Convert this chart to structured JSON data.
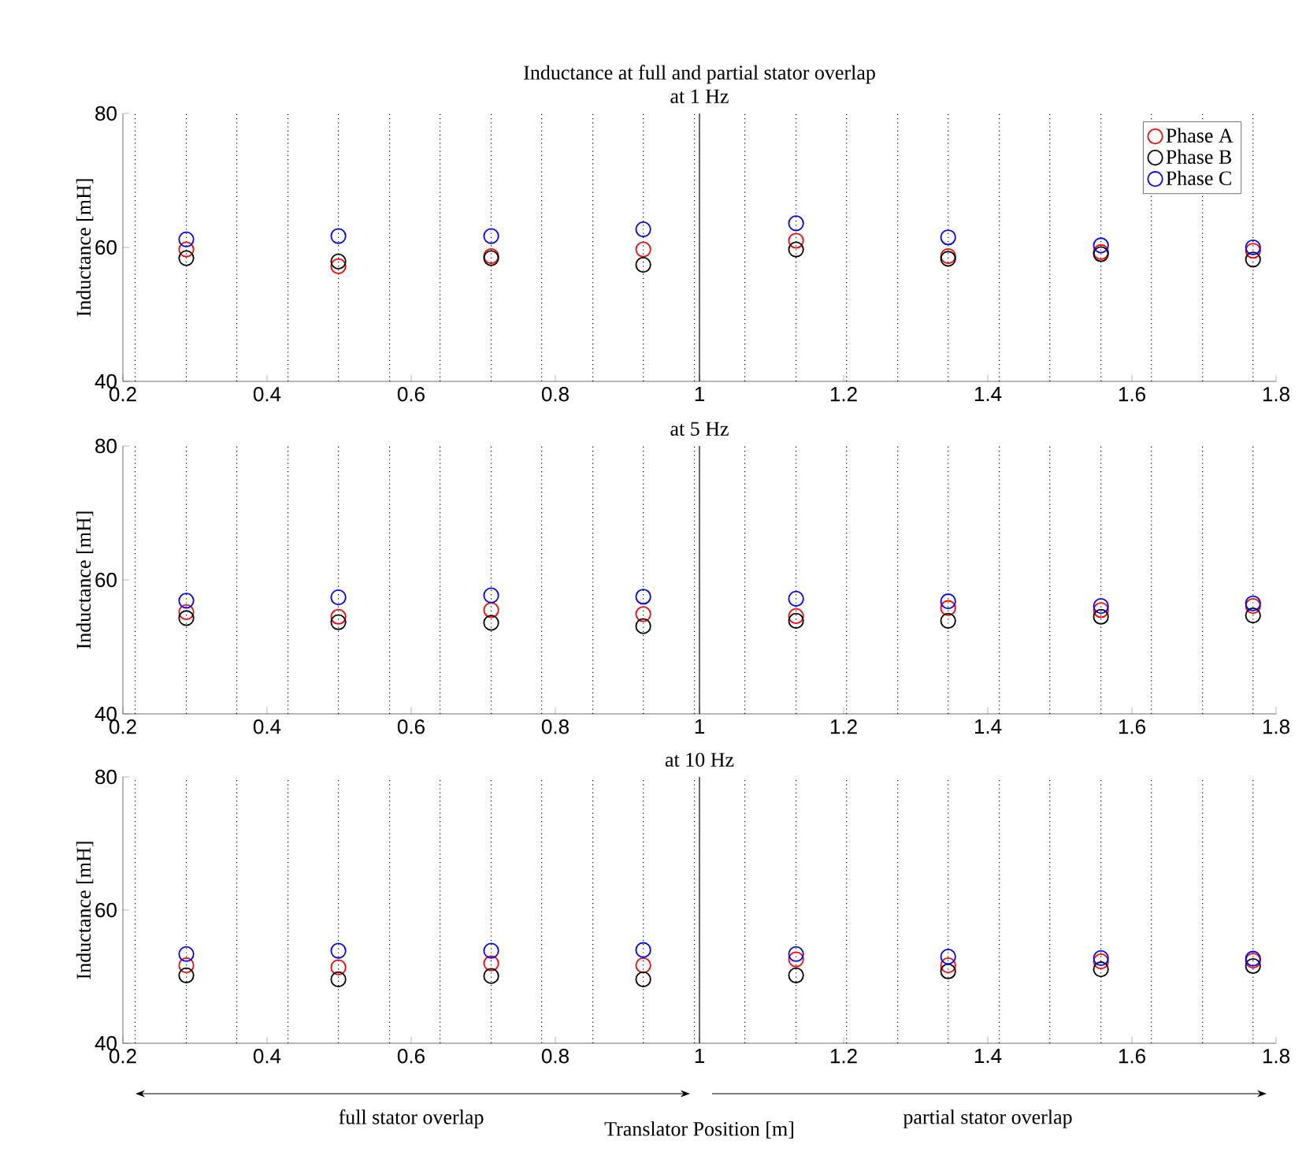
{
  "chart_data": [
    {
      "type": "scatter",
      "title": "Inductance at full and partial stator overlap",
      "subtitle": "at 1 Hz",
      "ylabel": "Inductance [mH]",
      "marker": "circle",
      "grid": false,
      "legend": "top right",
      "x": [
        0.288,
        0.499,
        0.711,
        0.922,
        1.134,
        1.345,
        1.557,
        1.768
      ],
      "xlim": [
        0.2,
        1.8
      ],
      "xticks": [
        0.2,
        0.4,
        0.6,
        0.8,
        1,
        1.2,
        1.4,
        1.6,
        1.8
      ],
      "ylim": [
        40,
        80
      ],
      "yticks": [
        40,
        60,
        80
      ],
      "series": [
        {
          "name": "Phase A",
          "color": "#ff0000",
          "values": [
            59.7,
            57.2,
            58.7,
            59.7,
            61.0,
            58.7,
            59.3,
            59.5
          ]
        },
        {
          "name": "Phase B",
          "color": "#000000",
          "values": [
            58.4,
            57.9,
            58.4,
            57.4,
            59.7,
            58.3,
            59.0,
            58.2
          ]
        },
        {
          "name": "Phase C",
          "color": "#0000ff",
          "values": [
            61.2,
            61.7,
            61.7,
            62.7,
            63.6,
            61.5,
            60.3,
            60.0
          ]
        }
      ],
      "ref_lines": [
        {
          "axis": "x",
          "value": 0.217,
          "line_style": "dotted",
          "color": "#000000"
        },
        {
          "axis": "x",
          "value": 0.288,
          "line_style": "dotted",
          "color": "#000000"
        },
        {
          "axis": "x",
          "value": 0.358,
          "line_style": "dotted",
          "color": "#000000"
        },
        {
          "axis": "x",
          "value": 0.429,
          "line_style": "dotted",
          "color": "#000000"
        },
        {
          "axis": "x",
          "value": 0.499,
          "line_style": "dotted",
          "color": "#000000"
        },
        {
          "axis": "x",
          "value": 0.57,
          "line_style": "dotted",
          "color": "#000000"
        },
        {
          "axis": "x",
          "value": 0.64,
          "line_style": "dotted",
          "color": "#000000"
        },
        {
          "axis": "x",
          "value": 0.711,
          "line_style": "dotted",
          "color": "#000000"
        },
        {
          "axis": "x",
          "value": 0.781,
          "line_style": "dotted",
          "color": "#000000"
        },
        {
          "axis": "x",
          "value": 0.852,
          "line_style": "dotted",
          "color": "#000000"
        },
        {
          "axis": "x",
          "value": 0.922,
          "line_style": "dotted",
          "color": "#000000"
        },
        {
          "axis": "x",
          "value": 0.993,
          "line_style": "dotted",
          "color": "#000000"
        },
        {
          "axis": "x",
          "value": 1,
          "line_style": "solid",
          "color": "#000000"
        },
        {
          "axis": "x",
          "value": 1.063,
          "line_style": "dotted",
          "color": "#000000"
        },
        {
          "axis": "x",
          "value": 1.134,
          "line_style": "dotted",
          "color": "#000000"
        },
        {
          "axis": "x",
          "value": 1.204,
          "line_style": "dotted",
          "color": "#000000"
        },
        {
          "axis": "x",
          "value": 1.275,
          "line_style": "dotted",
          "color": "#000000"
        },
        {
          "axis": "x",
          "value": 1.345,
          "line_style": "dotted",
          "color": "#000000"
        },
        {
          "axis": "x",
          "value": 1.416,
          "line_style": "dotted",
          "color": "#000000"
        },
        {
          "axis": "x",
          "value": 1.486,
          "line_style": "dotted",
          "color": "#000000"
        },
        {
          "axis": "x",
          "value": 1.557,
          "line_style": "dotted",
          "color": "#000000"
        },
        {
          "axis": "x",
          "value": 1.627,
          "line_style": "dotted",
          "color": "#000000"
        },
        {
          "axis": "x",
          "value": 1.698,
          "line_style": "dotted",
          "color": "#000000"
        },
        {
          "axis": "x",
          "value": 1.768,
          "line_style": "dotted",
          "color": "#000000"
        }
      ]
    },
    {
      "type": "scatter",
      "title": "at 5 Hz",
      "ylabel": "Inductance [mH]",
      "marker": "circle",
      "grid": false,
      "x": [
        0.288,
        0.499,
        0.711,
        0.922,
        1.134,
        1.345,
        1.557,
        1.768
      ],
      "xlim": [
        0.2,
        1.8
      ],
      "xticks": [
        0.2,
        0.4,
        0.6,
        0.8,
        1,
        1.2,
        1.4,
        1.6,
        1.8
      ],
      "ylim": [
        40,
        80
      ],
      "yticks": [
        40,
        60,
        80
      ],
      "series": [
        {
          "color": "#ff0000",
          "values": [
            55.2,
            54.5,
            55.5,
            54.9,
            54.6,
            55.8,
            55.5,
            56.1
          ]
        },
        {
          "color": "#000000",
          "values": [
            54.3,
            53.7,
            53.6,
            53.1,
            53.9,
            53.9,
            54.5,
            54.7
          ]
        },
        {
          "color": "#0000ff",
          "values": [
            56.9,
            57.4,
            57.7,
            57.5,
            57.2,
            56.8,
            56.1,
            56.5
          ]
        }
      ],
      "ref_lines": [
        {
          "axis": "x",
          "value": 0.217,
          "line_style": "dotted",
          "color": "#000000"
        },
        {
          "axis": "x",
          "value": 0.288,
          "line_style": "dotted",
          "color": "#000000"
        },
        {
          "axis": "x",
          "value": 0.358,
          "line_style": "dotted",
          "color": "#000000"
        },
        {
          "axis": "x",
          "value": 0.429,
          "line_style": "dotted",
          "color": "#000000"
        },
        {
          "axis": "x",
          "value": 0.499,
          "line_style": "dotted",
          "color": "#000000"
        },
        {
          "axis": "x",
          "value": 0.57,
          "line_style": "dotted",
          "color": "#000000"
        },
        {
          "axis": "x",
          "value": 0.64,
          "line_style": "dotted",
          "color": "#000000"
        },
        {
          "axis": "x",
          "value": 0.711,
          "line_style": "dotted",
          "color": "#000000"
        },
        {
          "axis": "x",
          "value": 0.781,
          "line_style": "dotted",
          "color": "#000000"
        },
        {
          "axis": "x",
          "value": 0.852,
          "line_style": "dotted",
          "color": "#000000"
        },
        {
          "axis": "x",
          "value": 0.922,
          "line_style": "dotted",
          "color": "#000000"
        },
        {
          "axis": "x",
          "value": 0.993,
          "line_style": "dotted",
          "color": "#000000"
        },
        {
          "axis": "x",
          "value": 1,
          "line_style": "solid",
          "color": "#000000"
        },
        {
          "axis": "x",
          "value": 1.063,
          "line_style": "dotted",
          "color": "#000000"
        },
        {
          "axis": "x",
          "value": 1.134,
          "line_style": "dotted",
          "color": "#000000"
        },
        {
          "axis": "x",
          "value": 1.204,
          "line_style": "dotted",
          "color": "#000000"
        },
        {
          "axis": "x",
          "value": 1.275,
          "line_style": "dotted",
          "color": "#000000"
        },
        {
          "axis": "x",
          "value": 1.345,
          "line_style": "dotted",
          "color": "#000000"
        },
        {
          "axis": "x",
          "value": 1.416,
          "line_style": "dotted",
          "color": "#000000"
        },
        {
          "axis": "x",
          "value": 1.486,
          "line_style": "dotted",
          "color": "#000000"
        },
        {
          "axis": "x",
          "value": 1.557,
          "line_style": "dotted",
          "color": "#000000"
        },
        {
          "axis": "x",
          "value": 1.627,
          "line_style": "dotted",
          "color": "#000000"
        },
        {
          "axis": "x",
          "value": 1.698,
          "line_style": "dotted",
          "color": "#000000"
        },
        {
          "axis": "x",
          "value": 1.768,
          "line_style": "dotted",
          "color": "#000000"
        }
      ]
    },
    {
      "type": "scatter",
      "title": "at 10 Hz",
      "ylabel": "Inductance [mH]",
      "xlabel": "Translator Position [m]",
      "marker": "circle",
      "grid": false,
      "annotations": [
        "full stator overlap",
        "partial stator overlap"
      ],
      "x": [
        0.288,
        0.499,
        0.711,
        0.922,
        1.134,
        1.345,
        1.557,
        1.768
      ],
      "xlim": [
        0.2,
        1.8
      ],
      "xticks": [
        0.2,
        0.4,
        0.6,
        0.8,
        1,
        1.2,
        1.4,
        1.6,
        1.8
      ],
      "ylim": [
        40,
        80
      ],
      "yticks": [
        40,
        60,
        80
      ],
      "series": [
        {
          "color": "#ff0000",
          "values": [
            51.7,
            51.4,
            52.0,
            51.7,
            52.6,
            51.7,
            52.3,
            52.4
          ]
        },
        {
          "color": "#000000",
          "values": [
            50.2,
            49.6,
            50.1,
            49.6,
            50.2,
            50.8,
            51.1,
            51.6
          ]
        },
        {
          "color": "#0000ff",
          "values": [
            53.4,
            53.9,
            53.9,
            54.0,
            53.4,
            53.0,
            52.8,
            52.7
          ]
        }
      ],
      "ref_lines": [
        {
          "axis": "x",
          "value": 0.217,
          "line_style": "dotted",
          "color": "#000000"
        },
        {
          "axis": "x",
          "value": 0.288,
          "line_style": "dotted",
          "color": "#000000"
        },
        {
          "axis": "x",
          "value": 0.358,
          "line_style": "dotted",
          "color": "#000000"
        },
        {
          "axis": "x",
          "value": 0.429,
          "line_style": "dotted",
          "color": "#000000"
        },
        {
          "axis": "x",
          "value": 0.499,
          "line_style": "dotted",
          "color": "#000000"
        },
        {
          "axis": "x",
          "value": 0.57,
          "line_style": "dotted",
          "color": "#000000"
        },
        {
          "axis": "x",
          "value": 0.64,
          "line_style": "dotted",
          "color": "#000000"
        },
        {
          "axis": "x",
          "value": 0.711,
          "line_style": "dotted",
          "color": "#000000"
        },
        {
          "axis": "x",
          "value": 0.781,
          "line_style": "dotted",
          "color": "#000000"
        },
        {
          "axis": "x",
          "value": 0.852,
          "line_style": "dotted",
          "color": "#000000"
        },
        {
          "axis": "x",
          "value": 0.922,
          "line_style": "dotted",
          "color": "#000000"
        },
        {
          "axis": "x",
          "value": 0.993,
          "line_style": "dotted",
          "color": "#000000"
        },
        {
          "axis": "x",
          "value": 1,
          "line_style": "solid",
          "color": "#000000"
        },
        {
          "axis": "x",
          "value": 1.063,
          "line_style": "dotted",
          "color": "#000000"
        },
        {
          "axis": "x",
          "value": 1.134,
          "line_style": "dotted",
          "color": "#000000"
        },
        {
          "axis": "x",
          "value": 1.204,
          "line_style": "dotted",
          "color": "#000000"
        },
        {
          "axis": "x",
          "value": 1.275,
          "line_style": "dotted",
          "color": "#000000"
        },
        {
          "axis": "x",
          "value": 1.345,
          "line_style": "dotted",
          "color": "#000000"
        },
        {
          "axis": "x",
          "value": 1.416,
          "line_style": "dotted",
          "color": "#000000"
        },
        {
          "axis": "x",
          "value": 1.486,
          "line_style": "dotted",
          "color": "#000000"
        },
        {
          "axis": "x",
          "value": 1.557,
          "line_style": "dotted",
          "color": "#000000"
        },
        {
          "axis": "x",
          "value": 1.627,
          "line_style": "dotted",
          "color": "#000000"
        },
        {
          "axis": "x",
          "value": 1.698,
          "line_style": "dotted",
          "color": "#000000"
        },
        {
          "axis": "x",
          "value": 1.768,
          "line_style": "dotted",
          "color": "#000000"
        }
      ]
    }
  ]
}
